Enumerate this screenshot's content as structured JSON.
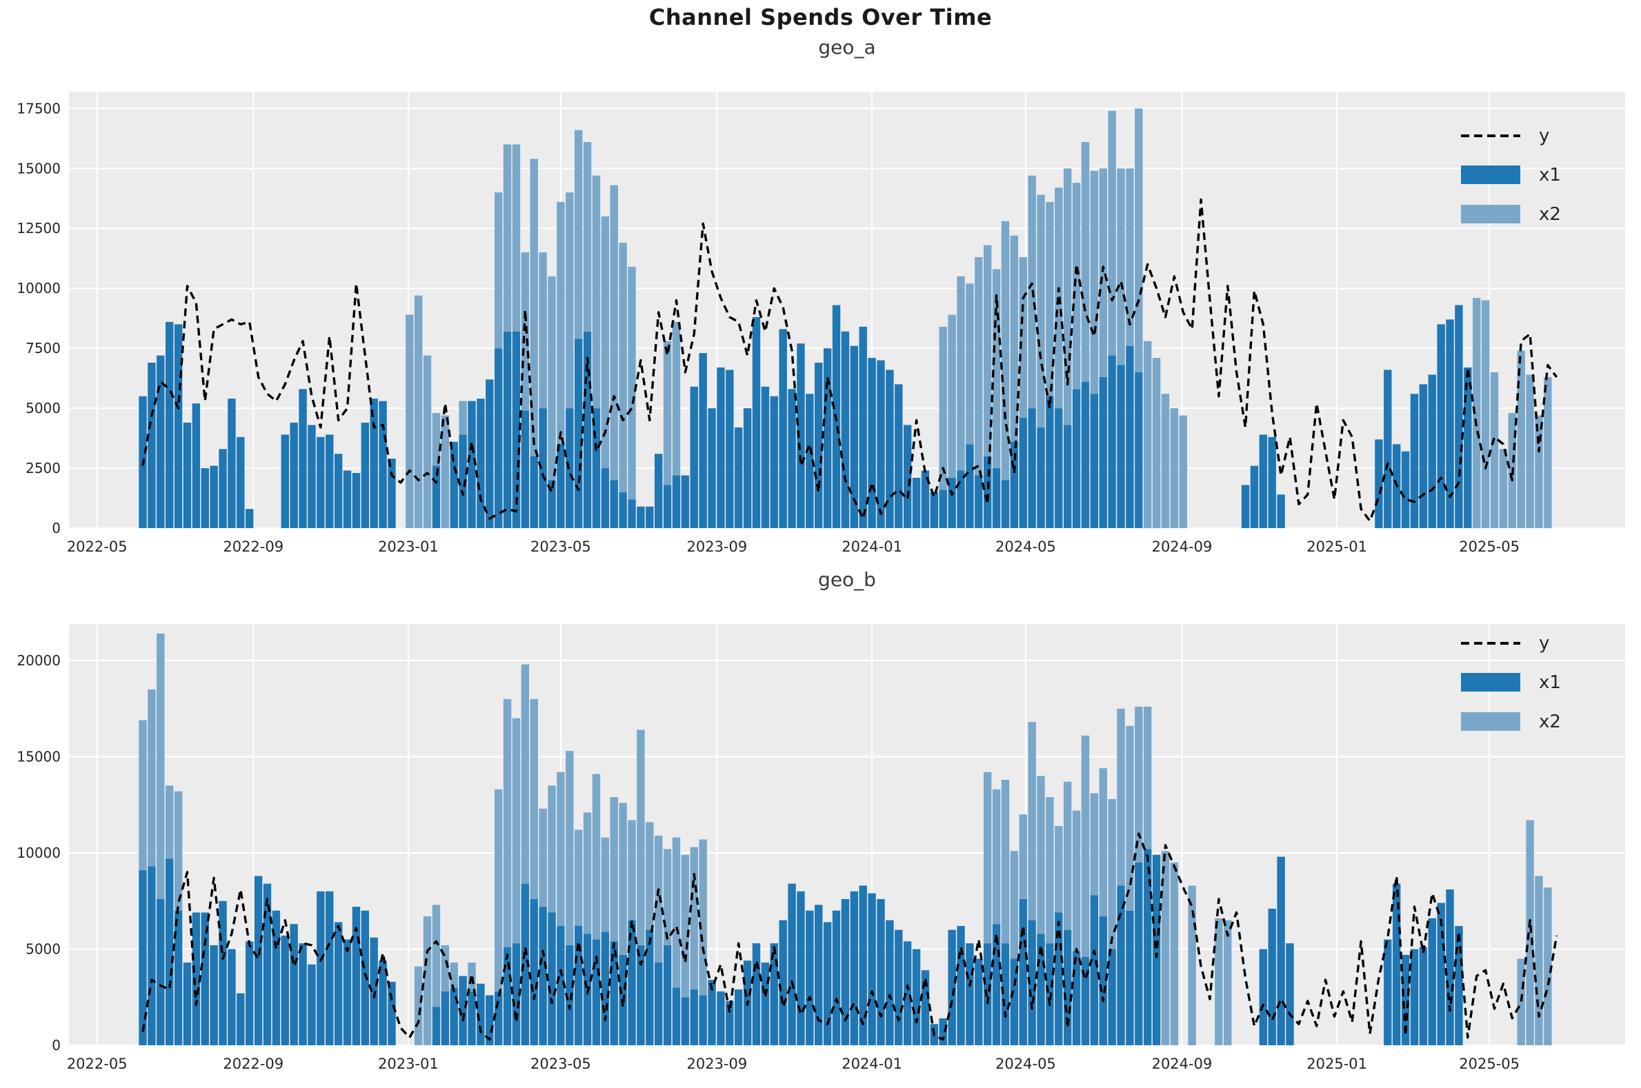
{
  "title": "Channel Spends Over Time",
  "colors": {
    "x1": "#1f77b4",
    "x2": "#79a7c9",
    "line": "#000000",
    "pane": "#ececec",
    "grid": "#ffffff",
    "tick_text": "#262626"
  },
  "chart_data": [
    {
      "type": "combo_bar_line",
      "title": "geo_a",
      "legend": [
        "y",
        "x1",
        "x2"
      ],
      "bar_mode": "stacked",
      "x_start_date": "2022-06-06",
      "x_interval_days": 7,
      "x_tick_dates": [
        "2022-05-01",
        "2022-09-01",
        "2023-01-01",
        "2023-05-01",
        "2023-09-01",
        "2024-01-01",
        "2024-05-01",
        "2024-09-01",
        "2025-01-01",
        "2025-05-01"
      ],
      "x_tick_labels": [
        "2022-05",
        "2022-09",
        "2023-01",
        "2023-05",
        "2023-09",
        "2024-01",
        "2024-05",
        "2024-09",
        "2025-01",
        "2025-05"
      ],
      "ylim": [
        0,
        18200
      ],
      "y_ticks": [
        0,
        2500,
        5000,
        7500,
        10000,
        12500,
        15000,
        17500
      ],
      "grid": true,
      "legend_position": "upper right",
      "series": {
        "x1": [
          5500,
          6900,
          7200,
          8600,
          8500,
          4400,
          5200,
          2500,
          2600,
          3300,
          5400,
          3800,
          800,
          0,
          0,
          0,
          3900,
          4400,
          5800,
          4300,
          3800,
          3900,
          3100,
          2400,
          2300,
          4400,
          5400,
          5300,
          2900,
          0,
          0,
          0,
          0,
          2600,
          0,
          3600,
          3900,
          5300,
          5400,
          6200,
          7500,
          8200,
          8200,
          4900,
          3000,
          5000,
          2000,
          3500,
          5000,
          7900,
          8200,
          5000,
          2500,
          2000,
          1500,
          1200,
          900,
          900,
          3100,
          1800,
          2200,
          2200,
          5900,
          7300,
          5000,
          6700,
          6600,
          4200,
          5000,
          8800,
          5900,
          5500,
          8300,
          5800,
          7700,
          5600,
          6900,
          7500,
          9300,
          8200,
          7600,
          8400,
          7100,
          7000,
          6600,
          6000,
          4300,
          2100,
          2400,
          1500,
          1600,
          2100,
          2400,
          3500,
          2200,
          3000,
          2500,
          2000,
          3600,
          4600,
          5000,
          4200,
          5500,
          5000,
          4300,
          5800,
          6100,
          5600,
          6300,
          7200,
          6800,
          7600,
          6500,
          0,
          0,
          0,
          0,
          0,
          0,
          0,
          0,
          0,
          0,
          0,
          1800,
          2600,
          3900,
          3800,
          1400,
          0,
          0,
          0,
          0,
          0,
          0,
          0,
          0,
          0,
          0,
          3700,
          6600,
          3500,
          3200,
          5600,
          6000,
          6400,
          8500,
          8700,
          9300,
          6700,
          0,
          0,
          0,
          0,
          0,
          0,
          0,
          0,
          0,
          0
        ],
        "x2": [
          0,
          0,
          0,
          0,
          0,
          0,
          0,
          0,
          0,
          0,
          0,
          0,
          0,
          0,
          0,
          0,
          0,
          0,
          0,
          0,
          0,
          0,
          0,
          0,
          0,
          0,
          0,
          0,
          0,
          0,
          8900,
          9700,
          7200,
          2200,
          4700,
          0,
          1400,
          0,
          0,
          0,
          6500,
          7800,
          7800,
          6600,
          12400,
          6500,
          8500,
          10100,
          9000,
          8700,
          7900,
          9700,
          10500,
          12300,
          10400,
          9700,
          0,
          0,
          0,
          6000,
          6400,
          0,
          0,
          0,
          0,
          0,
          0,
          0,
          0,
          0,
          0,
          0,
          0,
          0,
          0,
          0,
          0,
          0,
          0,
          0,
          0,
          0,
          0,
          0,
          0,
          0,
          0,
          0,
          0,
          0,
          6800,
          6800,
          8100,
          6700,
          9100,
          8800,
          8300,
          10800,
          8600,
          6700,
          9700,
          9700,
          8100,
          9200,
          10700,
          8600,
          10000,
          9300,
          8700,
          10200,
          8200,
          7400,
          11000,
          7800,
          7100,
          5600,
          5000,
          4700,
          0,
          0,
          0,
          0,
          0,
          0,
          0,
          0,
          0,
          0,
          0,
          0,
          0,
          0,
          0,
          0,
          0,
          0,
          0,
          0,
          0,
          0,
          0,
          0,
          0,
          0,
          0,
          0,
          0,
          0,
          0,
          0,
          9600,
          9500,
          6500,
          3300,
          4800,
          7400,
          6400,
          4700,
          6300,
          0
        ],
        "y": [
          2600,
          4700,
          6100,
          5800,
          5000,
          10100,
          9400,
          5300,
          8300,
          8500,
          8700,
          8500,
          8600,
          6300,
          5600,
          5300,
          6000,
          7000,
          7800,
          5500,
          4200,
          8000,
          4500,
          5000,
          10200,
          7200,
          4200,
          4300,
          2200,
          1900,
          2400,
          2000,
          2300,
          1900,
          5200,
          2600,
          1400,
          3600,
          1200,
          400,
          600,
          800,
          700,
          9100,
          3500,
          2200,
          1500,
          4000,
          2300,
          1600,
          7100,
          3200,
          4000,
          5500,
          4500,
          5000,
          7000,
          4500,
          9000,
          7200,
          9500,
          6500,
          8100,
          12700,
          10700,
          9600,
          8800,
          8600,
          7200,
          9500,
          8200,
          10000,
          9200,
          7400,
          2600,
          3500,
          1500,
          6300,
          4500,
          2000,
          1200,
          400,
          1900,
          600,
          1300,
          1600,
          1200,
          4500,
          2300,
          1300,
          2500,
          1400,
          2000,
          2400,
          2600,
          1000,
          9700,
          4500,
          2300,
          9600,
          10200,
          7000,
          5000,
          10000,
          6000,
          11000,
          9000,
          8000,
          10900,
          9500,
          10300,
          8500,
          9500,
          11000,
          10000,
          8800,
          10500,
          9000,
          8300,
          13700,
          9500,
          5500,
          10100,
          6500,
          4200,
          9900,
          8500,
          4800,
          2200,
          3800,
          1000,
          1400,
          5200,
          3200,
          1200,
          4500,
          3800,
          800,
          300,
          1300,
          2700,
          1800,
          1200,
          1100,
          1400,
          1600,
          2100,
          1300,
          1900,
          6700,
          4200,
          2500,
          3800,
          3500,
          2000,
          7800,
          8100,
          3200,
          6800,
          6300
        ]
      }
    },
    {
      "type": "combo_bar_line",
      "title": "geo_b",
      "legend": [
        "y",
        "x1",
        "x2"
      ],
      "bar_mode": "stacked",
      "x_start_date": "2022-06-06",
      "x_interval_days": 7,
      "x_tick_dates": [
        "2022-05-01",
        "2022-09-01",
        "2023-01-01",
        "2023-05-01",
        "2023-09-01",
        "2024-01-01",
        "2024-05-01",
        "2024-09-01",
        "2025-01-01",
        "2025-05-01"
      ],
      "x_tick_labels": [
        "2022-05",
        "2022-09",
        "2023-01",
        "2023-05",
        "2023-09",
        "2024-01",
        "2024-05",
        "2024-09",
        "2025-01",
        "2025-05"
      ],
      "ylim": [
        0,
        21900
      ],
      "y_ticks": [
        0,
        5000,
        10000,
        15000,
        20000
      ],
      "grid": true,
      "legend_position": "upper right",
      "series": {
        "x1": [
          9100,
          9300,
          7600,
          9700,
          7000,
          4300,
          6900,
          6900,
          5200,
          7500,
          5000,
          2700,
          5400,
          8800,
          8400,
          7000,
          5700,
          6300,
          5300,
          4200,
          8000,
          8000,
          6400,
          5500,
          7200,
          7000,
          5600,
          4400,
          3300,
          0,
          0,
          0,
          0,
          2000,
          2800,
          3000,
          3600,
          2800,
          3200,
          2600,
          2800,
          5100,
          5300,
          8400,
          7600,
          7200,
          6900,
          6200,
          5200,
          6200,
          5800,
          5500,
          5900,
          5400,
          4700,
          6500,
          5200,
          6000,
          4300,
          5200,
          3000,
          2500,
          2900,
          2600,
          3400,
          2800,
          2300,
          2900,
          4400,
          5300,
          4300,
          5300,
          6500,
          8400,
          8000,
          7000,
          7300,
          6400,
          7000,
          7600,
          8000,
          8300,
          7900,
          7600,
          6500,
          6000,
          5400,
          5000,
          3900,
          1100,
          1400,
          6000,
          6200,
          5300,
          4500,
          5300,
          6300,
          5300,
          4500,
          7600,
          6500,
          5800,
          5300,
          6900,
          6000,
          4900,
          4600,
          7800,
          6700,
          5000,
          8300,
          7000,
          9500,
          10200,
          9900,
          0,
          0,
          0,
          0,
          0,
          0,
          0,
          0,
          0,
          0,
          0,
          5000,
          7100,
          9800,
          5300,
          0,
          0,
          0,
          0,
          0,
          0,
          0,
          0,
          0,
          0,
          5500,
          8400,
          4700,
          5000,
          5100,
          6600,
          7400,
          8100,
          6200,
          0,
          0,
          0,
          0,
          0,
          0,
          0,
          0,
          0,
          0,
          0
        ],
        "x2": [
          7800,
          9200,
          13800,
          3800,
          6200,
          0,
          0,
          0,
          0,
          0,
          0,
          0,
          0,
          0,
          0,
          0,
          0,
          0,
          0,
          0,
          0,
          0,
          0,
          0,
          0,
          0,
          0,
          0,
          0,
          0,
          0,
          4100,
          6700,
          5300,
          2400,
          1300,
          0,
          1500,
          0,
          0,
          10500,
          12900,
          11700,
          11400,
          10400,
          5100,
          6600,
          8000,
          10100,
          5000,
          6300,
          8600,
          4900,
          7500,
          7900,
          5200,
          11200,
          5600,
          6600,
          5000,
          7800,
          7400,
          7400,
          8100,
          0,
          0,
          0,
          0,
          0,
          0,
          0,
          0,
          0,
          0,
          0,
          0,
          0,
          0,
          0,
          0,
          0,
          0,
          0,
          0,
          0,
          0,
          0,
          0,
          0,
          0,
          0,
          0,
          0,
          0,
          0,
          8900,
          7000,
          8500,
          5600,
          4400,
          10300,
          8200,
          7600,
          4500,
          7700,
          7300,
          11500,
          5300,
          7700,
          7800,
          9200,
          9600,
          8100,
          7400,
          0,
          10100,
          9500,
          0,
          8300,
          0,
          0,
          6600,
          6500,
          0,
          0,
          0,
          0,
          0,
          0,
          0,
          0,
          0,
          0,
          0,
          0,
          0,
          0,
          0,
          0,
          0,
          0,
          0,
          0,
          0,
          0,
          0,
          0,
          0,
          0,
          0,
          0,
          0,
          0,
          0,
          0,
          4500,
          11700,
          8800,
          8200,
          0
        ],
        "y": [
          700,
          3400,
          3100,
          2900,
          7400,
          9000,
          2100,
          5300,
          8700,
          4500,
          5800,
          8100,
          5200,
          4500,
          7600,
          5000,
          6500,
          4100,
          5300,
          5200,
          4400,
          5300,
          6200,
          4900,
          6100,
          3700,
          2500,
          4800,
          2300,
          900,
          400,
          1200,
          4900,
          5400,
          4600,
          2800,
          1300,
          3700,
          700,
          300,
          2400,
          4700,
          1200,
          5100,
          2400,
          4900,
          2200,
          3900,
          1900,
          5400,
          2700,
          4600,
          1300,
          5300,
          2000,
          6500,
          4200,
          5300,
          8100,
          5500,
          6200,
          4300,
          8900,
          5000,
          2900,
          4200,
          1700,
          5300,
          2100,
          4400,
          2500,
          5100,
          2000,
          3300,
          1600,
          2500,
          1300,
          1100,
          2400,
          1300,
          2200,
          1100,
          2800,
          1500,
          2600,
          1300,
          3100,
          1200,
          3500,
          500,
          300,
          2300,
          5100,
          3100,
          5500,
          2200,
          5800,
          1500,
          3000,
          6200,
          1900,
          5200,
          2100,
          6400,
          900,
          5000,
          3400,
          4900,
          2300,
          5600,
          6900,
          8200,
          11000,
          9800,
          4600,
          10400,
          9300,
          8200,
          7200,
          4100,
          2400,
          7600,
          5700,
          6900,
          3500,
          1000,
          2100,
          1300,
          2400,
          1600,
          1100,
          2300,
          1000,
          3400,
          1500,
          2800,
          1200,
          5400,
          600,
          3500,
          5600,
          8800,
          500,
          7200,
          4800,
          7900,
          6500,
          1800,
          5900,
          400,
          3600,
          3900,
          1900,
          3200,
          1400,
          2200,
          6500,
          1500,
          3000,
          5700
        ]
      }
    }
  ]
}
